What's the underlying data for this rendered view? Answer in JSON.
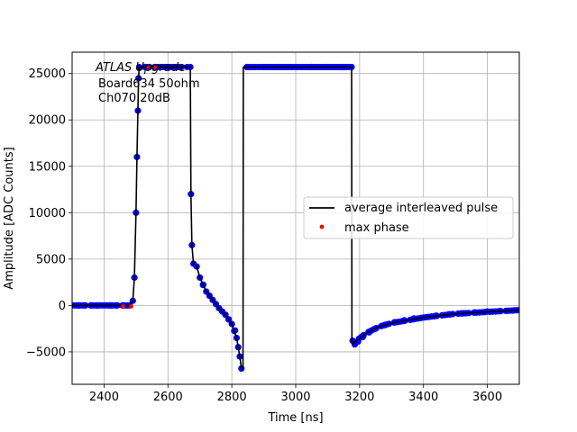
{
  "chart_data": {
    "type": "line",
    "xlabel": "Time [ns]",
    "ylabel": "Amplitude [ADC Counts]",
    "xlim": [
      2300,
      3700
    ],
    "ylim": [
      -8500,
      27300
    ],
    "x_ticks": [
      2400,
      2600,
      2800,
      3000,
      3200,
      3400,
      3600
    ],
    "y_ticks": [
      -5000,
      0,
      5000,
      10000,
      15000,
      20000,
      25000
    ],
    "x_tick_labels": [
      "2400",
      "2600",
      "2800",
      "3000",
      "3200",
      "3400",
      "3600"
    ],
    "y_tick_labels": [
      "−5000",
      "0",
      "5000",
      "10000",
      "15000",
      "20000",
      "25000"
    ],
    "grid": true,
    "legend_placement": "center-right",
    "annotation": {
      "lines": [
        "ATLAS Upgrade",
        "Board634 50ohm",
        "Ch070 20dB"
      ]
    },
    "series": [
      {
        "name": "average interleaved pulse",
        "style": "line",
        "color": "#000000",
        "x": [
          2300,
          2350,
          2400,
          2450,
          2480,
          2490,
          2495,
          2500,
          2503,
          2506,
          2508,
          2510,
          2520,
          2550,
          2600,
          2650,
          2670,
          2672,
          2675,
          2680,
          2690,
          2700,
          2720,
          2740,
          2760,
          2780,
          2800,
          2815,
          2825,
          2830,
          2835,
          2836,
          2838,
          2900,
          3000,
          3100,
          3175,
          3176,
          3178,
          3190,
          3220,
          3260,
          3300,
          3350,
          3400,
          3450,
          3500,
          3550,
          3600,
          3650,
          3700
        ],
        "y": [
          0,
          0,
          0,
          0,
          0,
          500,
          3000,
          10000,
          16000,
          21000,
          24500,
          25700,
          25700,
          25700,
          25700,
          25700,
          25700,
          12000,
          6500,
          4500,
          4200,
          3000,
          1500,
          600,
          -300,
          -1000,
          -2000,
          -3500,
          -5500,
          -6800,
          -6800,
          25700,
          25700,
          25700,
          25700,
          25700,
          25700,
          -3800,
          -4200,
          -3800,
          -3000,
          -2300,
          -1900,
          -1600,
          -1300,
          -1100,
          -900,
          -800,
          -700,
          -600,
          -500
        ]
      },
      {
        "name": "",
        "style": "points",
        "color": "#0000ff",
        "x": [
          2300,
          2320,
          2340,
          2360,
          2380,
          2400,
          2420,
          2440,
          2460,
          2480,
          2490,
          2495,
          2500,
          2503,
          2506,
          2508,
          2510,
          2530,
          2560,
          2600,
          2640,
          2670,
          2672,
          2675,
          2680,
          2690,
          2700,
          2710,
          2720,
          2740,
          2760,
          2780,
          2790,
          2800,
          2810,
          2815,
          2820,
          2825,
          2830,
          2850,
          2900,
          2950,
          3000,
          3050,
          3100,
          3150,
          3175,
          3178,
          3185,
          3195,
          3210,
          3230,
          3250,
          3280,
          3310,
          3340,
          3370,
          3400,
          3440,
          3480,
          3520,
          3560,
          3600,
          3640,
          3680,
          3700
        ],
        "y": [
          0,
          0,
          0,
          0,
          0,
          0,
          0,
          0,
          0,
          0,
          500,
          3000,
          10000,
          16000,
          21000,
          24500,
          25700,
          25700,
          25700,
          25700,
          25700,
          25700,
          12000,
          6500,
          4500,
          4200,
          3000,
          2200,
          1500,
          600,
          -300,
          -1000,
          -1500,
          -2000,
          -2700,
          -3500,
          -4500,
          -5500,
          -6800,
          25700,
          25700,
          25700,
          25700,
          25700,
          25700,
          25700,
          25700,
          -3800,
          -4200,
          -3900,
          -3400,
          -2900,
          -2500,
          -2100,
          -1800,
          -1600,
          -1400,
          -1300,
          -1100,
          -950,
          -850,
          -750,
          -650,
          -600,
          -550,
          -500
        ]
      },
      {
        "name": "max phase",
        "style": "points",
        "color": "#ff0000",
        "x": [
          2460,
          2485,
          2540,
          2560
        ],
        "y": [
          -100,
          -100,
          25700,
          25700
        ]
      }
    ]
  }
}
